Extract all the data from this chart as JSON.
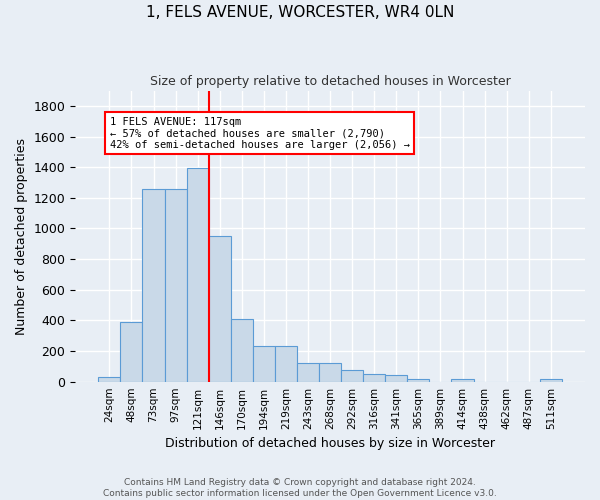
{
  "title": "1, FELS AVENUE, WORCESTER, WR4 0LN",
  "subtitle": "Size of property relative to detached houses in Worcester",
  "xlabel": "Distribution of detached houses by size in Worcester",
  "ylabel": "Number of detached properties",
  "categories": [
    "24sqm",
    "48sqm",
    "73sqm",
    "97sqm",
    "121sqm",
    "146sqm",
    "170sqm",
    "194sqm",
    "219sqm",
    "243sqm",
    "268sqm",
    "292sqm",
    "316sqm",
    "341sqm",
    "365sqm",
    "389sqm",
    "414sqm",
    "438sqm",
    "462sqm",
    "487sqm",
    "511sqm"
  ],
  "values": [
    30,
    390,
    1260,
    1260,
    1395,
    950,
    410,
    235,
    235,
    120,
    120,
    75,
    50,
    45,
    18,
    0,
    15,
    0,
    0,
    0,
    15
  ],
  "bar_color": "#c9d9e8",
  "bar_edge_color": "#5b9bd5",
  "background_color": "#e8eef5",
  "grid_color": "#ffffff",
  "vline_x": 4.5,
  "vline_color": "red",
  "annotation_line1": "1 FELS AVENUE: 117sqm",
  "annotation_line2": "← 57% of detached houses are smaller (2,790)",
  "annotation_line3": "42% of semi-detached houses are larger (2,056) →",
  "annotation_box_color": "white",
  "annotation_box_edge_color": "red",
  "footer_text": "Contains HM Land Registry data © Crown copyright and database right 2024.\nContains public sector information licensed under the Open Government Licence v3.0.",
  "ylim": [
    0,
    1900
  ],
  "yticks": [
    0,
    200,
    400,
    600,
    800,
    1000,
    1200,
    1400,
    1600,
    1800
  ],
  "figsize": [
    6.0,
    5.0
  ],
  "dpi": 100
}
